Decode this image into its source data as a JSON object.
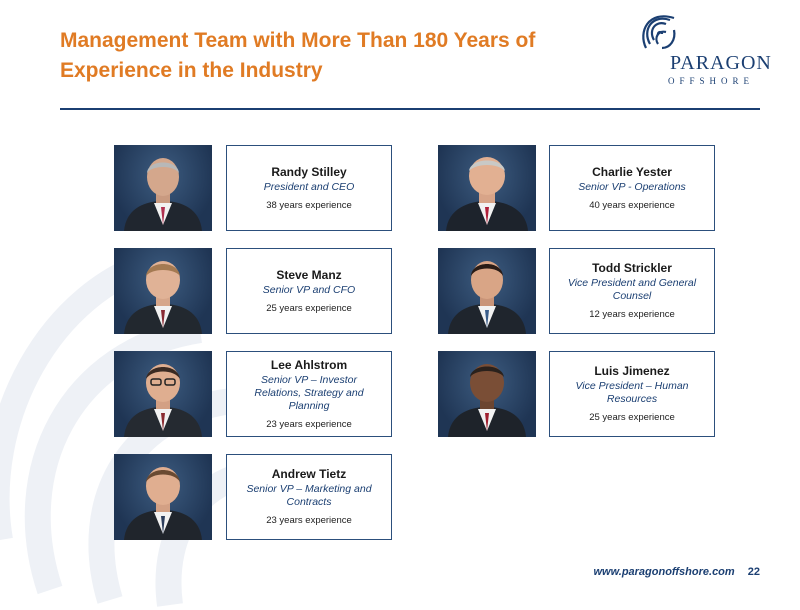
{
  "title": {
    "line1": "Management Team with More Than 180 Years of",
    "line2": "Experience in the Industry"
  },
  "logo": {
    "brand": "PARAGON",
    "sub": "OFFSHORE"
  },
  "colors": {
    "title": "#e07b24",
    "navy": "#1b3f72",
    "border": "#2c4f7c"
  },
  "team": [
    {
      "name": "Randy Stilley",
      "role": "President and CEO",
      "experience": "38 years experience"
    },
    {
      "name": "Charlie Yester",
      "role": "Senior VP - Operations",
      "experience": "40 years experience"
    },
    {
      "name": "Steve Manz",
      "role": "Senior VP and CFO",
      "experience": "25 years experience"
    },
    {
      "name": "Todd Strickler",
      "role": "Vice President and General Counsel",
      "experience": "12 years experience"
    },
    {
      "name": "Lee Ahlstrom",
      "role": "Senior VP – Investor Relations, Strategy and Planning",
      "experience": "23 years experience"
    },
    {
      "name": "Luis Jimenez",
      "role": "Vice President – Human Resources",
      "experience": "25 years experience"
    },
    {
      "name": "Andrew Tietz",
      "role": "Senior VP – Marketing and Contracts",
      "experience": "23 years experience"
    }
  ],
  "footer": {
    "url": "www.paragonoffshore.com",
    "page": "22"
  }
}
